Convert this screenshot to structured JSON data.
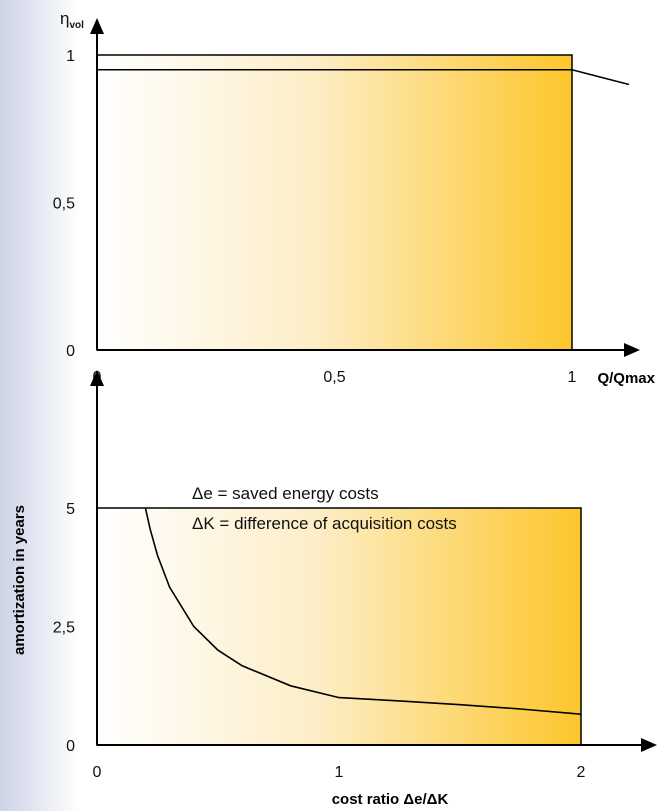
{
  "chart_data": [
    {
      "type": "line",
      "ylabel_symbol": "η",
      "ylabel_subscript": "vol",
      "xlabel": "Q/Qmax",
      "x_ticks": [
        "0",
        "0,5",
        "1"
      ],
      "y_ticks": [
        "0",
        "0,5",
        "1"
      ],
      "xlim": [
        0,
        1.12
      ],
      "ylim": [
        0,
        1.0
      ],
      "shaded_region": {
        "x": [
          0,
          1
        ],
        "y": [
          0,
          1
        ]
      },
      "series": [
        {
          "x": [
            0,
            0.6,
            1.0,
            1.12
          ],
          "y": [
            0.95,
            0.95,
            0.95,
            0.9
          ]
        }
      ],
      "gradient_colors": [
        "#ffffff",
        "#fdc62b"
      ]
    },
    {
      "type": "line",
      "ylabel": "amortization in years",
      "xlabel": "cost ratio Δe/ΔK",
      "x_ticks": [
        "0",
        "1",
        "2"
      ],
      "y_ticks": [
        "0",
        "2,5",
        "5"
      ],
      "xlim": [
        0,
        2.12
      ],
      "ylim": [
        0,
        5
      ],
      "shaded_region": {
        "x": [
          0,
          2
        ],
        "y": [
          0,
          5
        ]
      },
      "annotations": [
        "Δe = saved energy costs",
        "ΔK = difference of acquisition costs"
      ],
      "series": [
        {
          "x": [
            0.2,
            0.22,
            0.25,
            0.3,
            0.4,
            0.5,
            0.6,
            0.8,
            1.0,
            1.25,
            1.5,
            1.75,
            2.0
          ],
          "y": [
            5.0,
            4.55,
            4.0,
            3.33,
            2.5,
            2.0,
            1.67,
            1.25,
            1.0,
            0.93,
            0.85,
            0.76,
            0.65
          ]
        }
      ],
      "gradient_colors": [
        "#ffffff",
        "#fdc62b"
      ]
    }
  ]
}
